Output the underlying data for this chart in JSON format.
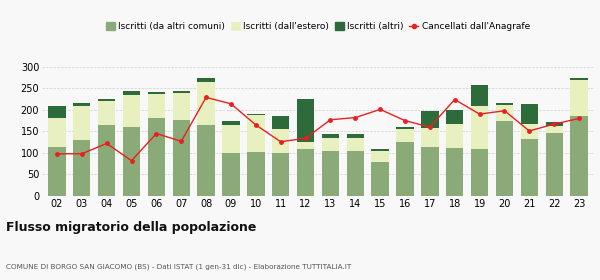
{
  "years": [
    "02",
    "03",
    "04",
    "05",
    "06",
    "07",
    "08",
    "09",
    "10",
    "11",
    "12",
    "13",
    "14",
    "15",
    "16",
    "17",
    "18",
    "19",
    "20",
    "21",
    "22",
    "23"
  ],
  "iscritti_comuni": [
    113,
    131,
    165,
    160,
    181,
    176,
    165,
    100,
    102,
    100,
    110,
    105,
    105,
    80,
    126,
    113,
    112,
    110,
    174,
    133,
    147,
    185
  ],
  "iscritti_estero": [
    67,
    78,
    55,
    75,
    55,
    63,
    100,
    65,
    85,
    55,
    15,
    30,
    30,
    25,
    30,
    45,
    55,
    100,
    37,
    35,
    15,
    85
  ],
  "iscritti_altri": [
    28,
    8,
    5,
    8,
    5,
    5,
    10,
    8,
    3,
    30,
    100,
    10,
    8,
    5,
    5,
    40,
    32,
    48,
    5,
    45,
    10,
    5
  ],
  "cancellati": [
    98,
    98,
    122,
    82,
    145,
    127,
    229,
    214,
    165,
    126,
    134,
    177,
    182,
    201,
    175,
    160,
    224,
    190,
    198,
    151,
    167,
    180
  ],
  "color_comuni": "#8aab78",
  "color_estero": "#e8f0c0",
  "color_altri": "#2d6b3a",
  "color_cancellati": "#e82020",
  "legend_labels": [
    "Iscritti (da altri comuni)",
    "Iscritti (dall'estero)",
    "Iscritti (altri)",
    "Cancellati dall'Anagrafe"
  ],
  "title": "Flusso migratorio della popolazione",
  "subtitle": "COMUNE DI BORGO SAN GIACOMO (BS) - Dati ISTAT (1 gen-31 dic) - Elaborazione TUTTITALIA.IT",
  "ylim": [
    0,
    325
  ],
  "yticks": [
    0,
    50,
    100,
    150,
    200,
    250,
    300
  ],
  "bgcolor": "#f8f8f8"
}
